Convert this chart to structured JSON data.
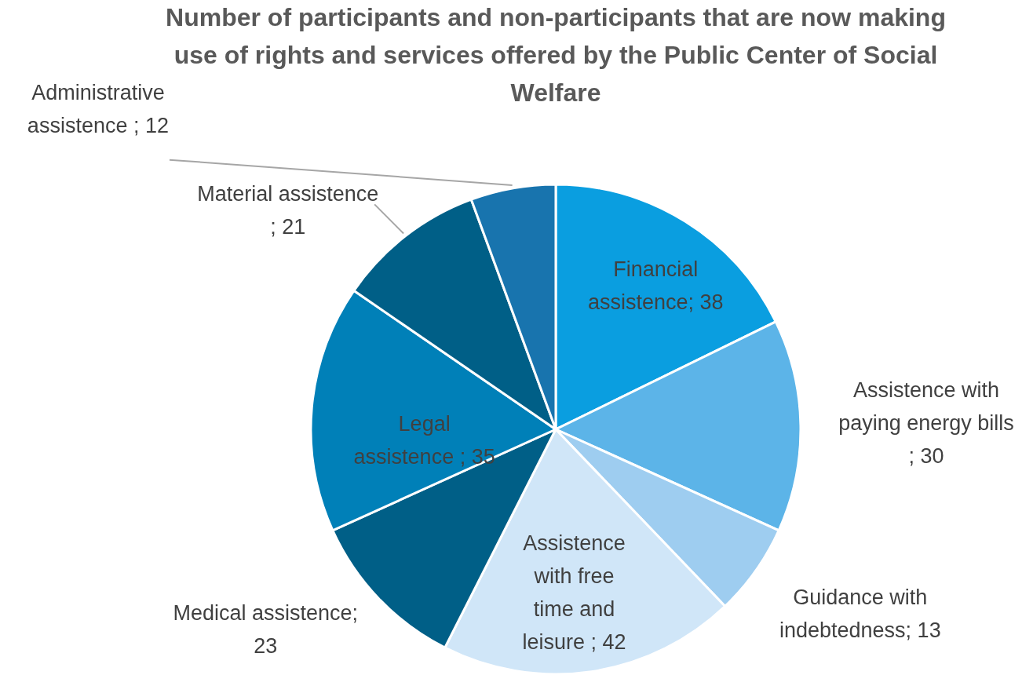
{
  "chart_data": {
    "type": "pie",
    "title": "Number of participants and non-participants that are now making use of rights and services offered by the Public Center of Social Welfare",
    "categories": [
      "Financial assistence",
      "Assistence with paying energy bills",
      "Guidance with indebtedness",
      "Assistence with free time and leisure",
      "Medical assistence",
      "Legal assistence",
      "Material assistence",
      "Administrative assistence"
    ],
    "values": [
      38,
      30,
      13,
      42,
      23,
      35,
      21,
      12
    ],
    "colors": [
      "#0a9ee0",
      "#5cb4e8",
      "#9ecdf0",
      "#d0e6f8",
      "#005f87",
      "#0080b8",
      "#005f87",
      "#1874ae"
    ],
    "value_labels": [
      "; 38",
      " ; 30",
      "; 13",
      "  ; 42",
      "; 23",
      " ; 35",
      " ; 21",
      " ; 12"
    ]
  }
}
